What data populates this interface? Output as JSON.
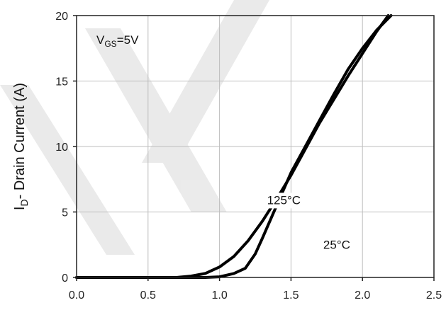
{
  "chart_data": {
    "type": "line",
    "title": "",
    "ylabel_main": "I",
    "ylabel_sub": "D",
    "ylabel_rest": "- Drain Current (A)",
    "xlabel": "",
    "xlim": [
      0,
      2.5
    ],
    "ylim": [
      0,
      20
    ],
    "xticks": [
      "0.0",
      "0.5",
      "1.0",
      "1.5",
      "2.0",
      "2.5"
    ],
    "yticks": [
      "0",
      "5",
      "10",
      "15",
      "20"
    ],
    "grid": true,
    "annotation": {
      "main": "V",
      "sub": "GS",
      "rest": "=5V"
    },
    "series": [
      {
        "name": "125°C",
        "x": [
          0,
          0.7,
          0.8,
          0.9,
          1.0,
          1.1,
          1.2,
          1.3,
          1.4,
          1.5,
          1.6,
          1.7,
          1.8,
          1.9,
          2.0,
          2.1,
          2.18
        ],
        "y": [
          0,
          0,
          0.1,
          0.3,
          0.8,
          1.6,
          2.8,
          4.3,
          6.0,
          7.8,
          9.8,
          11.8,
          13.6,
          15.4,
          17.1,
          18.8,
          20
        ]
      },
      {
        "name": "25°C",
        "x": [
          0,
          0.9,
          1.0,
          1.1,
          1.18,
          1.25,
          1.3,
          1.4,
          1.5,
          1.6,
          1.7,
          1.8,
          1.9,
          2.0,
          2.1,
          2.2
        ],
        "y": [
          0,
          0,
          0.05,
          0.3,
          0.7,
          1.8,
          3.0,
          5.5,
          8.0,
          10.0,
          12.0,
          14.0,
          15.9,
          17.5,
          18.9,
          20
        ]
      }
    ],
    "series_labels": [
      {
        "text": "125°C",
        "x": 1.45,
        "y": 5.6
      },
      {
        "text": "25°C",
        "x": 1.82,
        "y": 2.2
      }
    ]
  }
}
